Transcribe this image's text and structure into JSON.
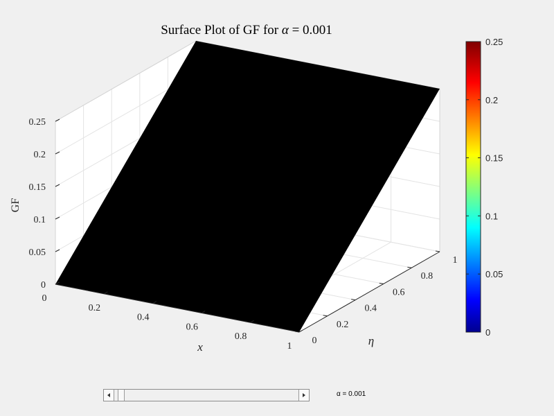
{
  "chart_data": {
    "type": "surface",
    "title_prefix": "Surface Plot of GF for ",
    "title_symbol": "α",
    "title_suffix": " = 0.001",
    "xlabel": "x",
    "ylabel": "η",
    "zlabel": "GF",
    "x_ticks": [
      "0",
      "0.2",
      "0.4",
      "0.6",
      "0.8",
      "1"
    ],
    "eta_ticks": [
      "0",
      "0.2",
      "0.4",
      "0.6",
      "0.8",
      "1"
    ],
    "z_ticks": [
      "0",
      "0.05",
      "0.1",
      "0.15",
      "0.2",
      "0.25"
    ],
    "xlim": [
      0,
      1
    ],
    "etalim": [
      0,
      1
    ],
    "zlim": [
      0,
      0.25
    ],
    "grid": true,
    "surface_color": "#000000",
    "surface_corners": [
      {
        "x": 0,
        "eta": 0,
        "gf": 0
      },
      {
        "x": 1,
        "eta": 0,
        "gf": 0
      },
      {
        "x": 0,
        "eta": 1,
        "gf": 0.25
      },
      {
        "x": 1,
        "eta": 1,
        "gf": 0.25
      }
    ],
    "colorbar": {
      "colormap": "jet",
      "ticks": [
        "0",
        "0.05",
        "0.1",
        "0.15",
        "0.2",
        "0.25"
      ],
      "range": [
        0,
        0.25
      ]
    }
  },
  "slider": {
    "value": 0.001,
    "label": "α = 0.001"
  }
}
